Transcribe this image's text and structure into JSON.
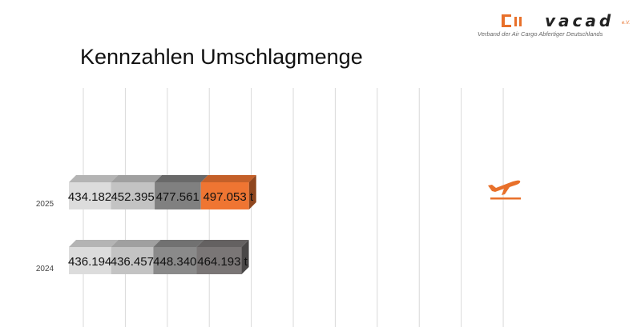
{
  "page": {
    "title": "Kennzahlen Umschlagmenge"
  },
  "logo": {
    "name": "vacad",
    "suffix": "e.V.",
    "subtitle": "Verband der Air Cargo Abfertiger Deutschlands",
    "accent_color": "#e8702a"
  },
  "icon": {
    "name": "airplane-takeoff-icon",
    "color": "#e8702a"
  },
  "chart_data": {
    "type": "bar",
    "orientation": "horizontal",
    "stacked": true,
    "style": "3d",
    "title": "",
    "xlabel": "",
    "ylabel": "",
    "categories": [
      "2025",
      "2024"
    ],
    "series": [
      {
        "values": [
          434182,
          436194
        ],
        "labels": [
          "434.182 t",
          "436.194 t"
        ],
        "colors": [
          "#dcdcdc",
          "#dcdcdc"
        ]
      },
      {
        "values": [
          452395,
          436457
        ],
        "labels": [
          "452.395 t",
          "436.457 t"
        ],
        "colors": [
          "#c3c3c3",
          "#c3c3c3"
        ]
      },
      {
        "values": [
          477561,
          448340
        ],
        "labels": [
          "477.561 t",
          "448.340 t"
        ],
        "colors": [
          "#808080",
          "#8a8a8a"
        ]
      },
      {
        "values": [
          497053,
          464193
        ],
        "labels": [
          "497.053 t",
          "464.193 t"
        ],
        "colors": [
          "#ef7532",
          "#7a7676"
        ]
      }
    ],
    "xlim": [
      0,
      2000000
    ],
    "grid": true,
    "legend": "none"
  }
}
